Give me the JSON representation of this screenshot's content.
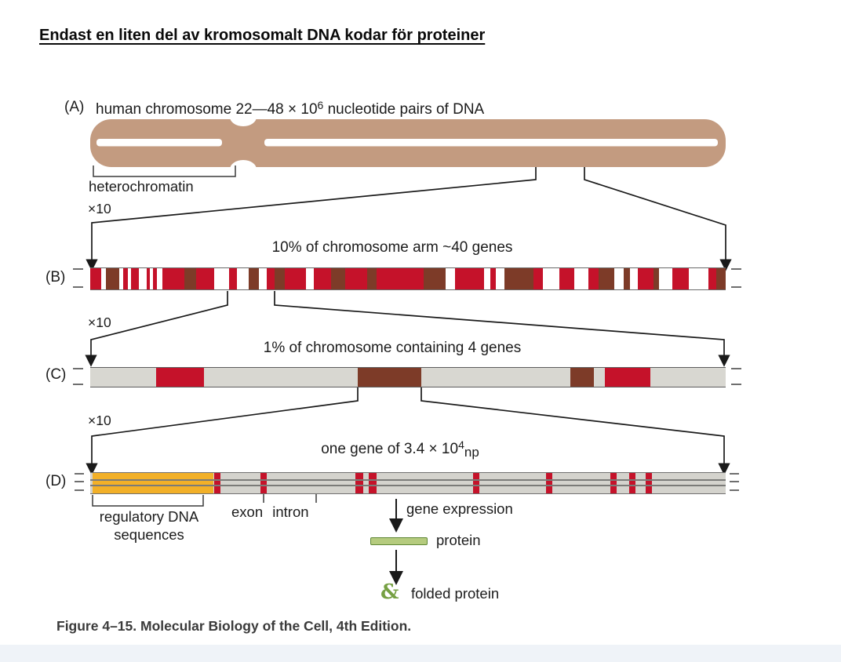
{
  "colors": {
    "tan": "#c39b80",
    "red": "#c5122a",
    "brown": "#7d3b28",
    "orange": "#f2b028",
    "green_fill": "#b5cb7e",
    "green_border": "#5f8836",
    "green_dark": "#76a043",
    "line": "#1a1a1a"
  },
  "title": "Endast en liten del av kromosomalt DNA kodar för proteiner",
  "panel_a": {
    "label": "(A)",
    "caption_main": "human chromosome 22—48 × 10",
    "caption_sup": "6",
    "caption_tail": " nucleotide pairs of DNA",
    "heterochromatin": "heterochromatin"
  },
  "magnification": "×10",
  "panel_b": {
    "label": "(B)",
    "caption": "10% of chromosome arm ~40 genes"
  },
  "panel_c": {
    "label": "(C)",
    "caption": "1% of chromosome containing 4 genes"
  },
  "panel_d": {
    "label": "(D)",
    "caption_main": "one gene of 3.4 × 10",
    "caption_sup": "4",
    "caption_sub": "np",
    "regulatory_line1": "regulatory DNA",
    "regulatory_line2": "sequences",
    "exon_intron": "exon intron",
    "gene_expression": "gene expression",
    "protein": "protein",
    "folded_protein": "folded protein",
    "folded_glyph": "&"
  },
  "figure_caption": "Figure 4–15. Molecular Biology of the Cell, 4th Edition.",
  "bands": {
    "b": {
      "background": "#ffffff",
      "segments": [
        [
          0,
          14,
          "red"
        ],
        [
          20,
          17,
          "brown"
        ],
        [
          42,
          6,
          "red"
        ],
        [
          52,
          10,
          "red"
        ],
        [
          72,
          4,
          "red"
        ],
        [
          80,
          5,
          "red"
        ],
        [
          92,
          28,
          "red"
        ],
        [
          120,
          15,
          "brown"
        ],
        [
          135,
          23,
          "red"
        ],
        [
          177,
          10,
          "red"
        ],
        [
          202,
          13,
          "brown"
        ],
        [
          225,
          10,
          "red"
        ],
        [
          235,
          13,
          "brown"
        ],
        [
          248,
          27,
          "red"
        ],
        [
          285,
          22,
          "red"
        ],
        [
          307,
          18,
          "brown"
        ],
        [
          325,
          28,
          "red"
        ],
        [
          353,
          12,
          "brown"
        ],
        [
          365,
          60,
          "red"
        ],
        [
          425,
          28,
          "brown"
        ],
        [
          465,
          37,
          "red"
        ],
        [
          510,
          7,
          "red"
        ],
        [
          528,
          37,
          "brown"
        ],
        [
          565,
          12,
          "red"
        ],
        [
          598,
          19,
          "red"
        ],
        [
          635,
          13,
          "red"
        ],
        [
          648,
          20,
          "brown"
        ],
        [
          680,
          8,
          "brown"
        ],
        [
          698,
          20,
          "red"
        ],
        [
          718,
          7,
          "brown"
        ],
        [
          742,
          21,
          "red"
        ],
        [
          788,
          10,
          "red"
        ],
        [
          798,
          12,
          "brown"
        ]
      ]
    },
    "c": {
      "background": "#d8d7d1",
      "segments": [
        [
          84,
          61,
          "red"
        ],
        [
          341,
          81,
          "brown"
        ],
        [
          612,
          30,
          "brown"
        ],
        [
          656,
          58,
          "red"
        ]
      ]
    },
    "d": {
      "background": "#d4d3cd",
      "segments": [
        [
          3,
          154,
          "orange"
        ],
        [
          158,
          8,
          "red"
        ],
        [
          217,
          8,
          "red"
        ],
        [
          338,
          10,
          "red"
        ],
        [
          355,
          10,
          "red"
        ],
        [
          488,
          8,
          "red"
        ],
        [
          581,
          8,
          "red"
        ],
        [
          663,
          8,
          "red"
        ],
        [
          687,
          8,
          "red"
        ],
        [
          708,
          8,
          "red"
        ]
      ]
    }
  }
}
